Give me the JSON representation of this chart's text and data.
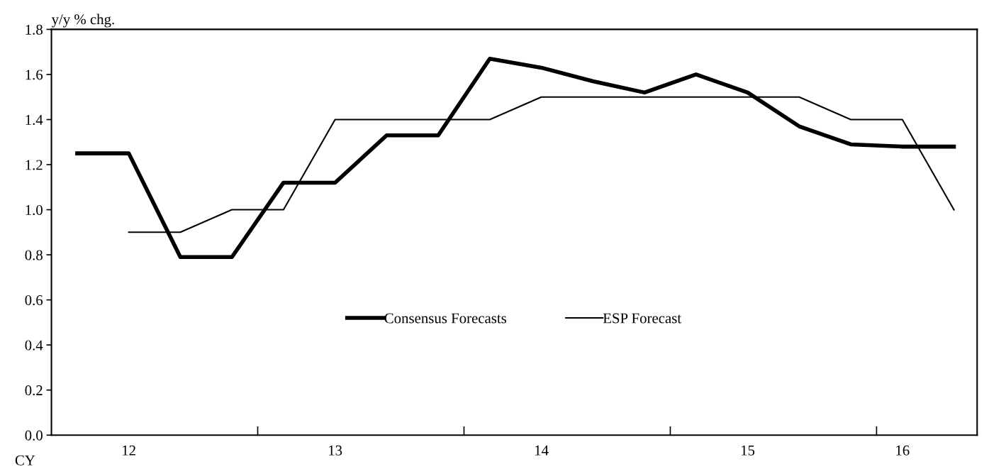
{
  "chart_data": {
    "type": "line",
    "ylabel": "y/y % chg.",
    "categories": [
      null,
      "12",
      null,
      null,
      null,
      "13",
      null,
      null,
      null,
      "14",
      null,
      null,
      null,
      "15",
      null,
      null,
      "16",
      null
    ],
    "series": [
      {
        "name": "Consensus Forecasts",
        "color": "#000000",
        "values": [
          1.25,
          1.25,
          0.79,
          0.79,
          1.12,
          1.12,
          1.33,
          1.33,
          1.67,
          1.63,
          1.57,
          1.52,
          1.6,
          1.52,
          1.37,
          1.29,
          1.28,
          1.28
        ]
      },
      {
        "name": "ESP Forecast",
        "color": "#000000",
        "values": [
          null,
          0.9,
          0.9,
          1.0,
          1.0,
          1.4,
          1.4,
          1.4,
          1.4,
          1.5,
          1.5,
          1.5,
          1.5,
          1.5,
          1.5,
          1.4,
          1.4,
          1.0
        ]
      }
    ],
    "ylim": [
      0,
      1.8
    ],
    "yticks": [
      {
        "value": 0,
        "label": "0.0"
      },
      {
        "value": 0.2,
        "label": "0.2"
      },
      {
        "value": 0.4,
        "label": "0.4"
      },
      {
        "value": 0.6,
        "label": "0.6"
      },
      {
        "value": 0.8,
        "label": "0.8"
      },
      {
        "value": 1.0,
        "label": "1.0"
      },
      {
        "value": 1.2,
        "label": "1.2"
      },
      {
        "value": 1.4,
        "label": "1.4"
      },
      {
        "value": 1.6,
        "label": "1.6"
      },
      {
        "value": 1.8,
        "label": "1.8"
      }
    ],
    "legend": "center",
    "grid": false,
    "marker": "none",
    "line_style": "solid",
    "annotations": [
      "CY"
    ]
  }
}
